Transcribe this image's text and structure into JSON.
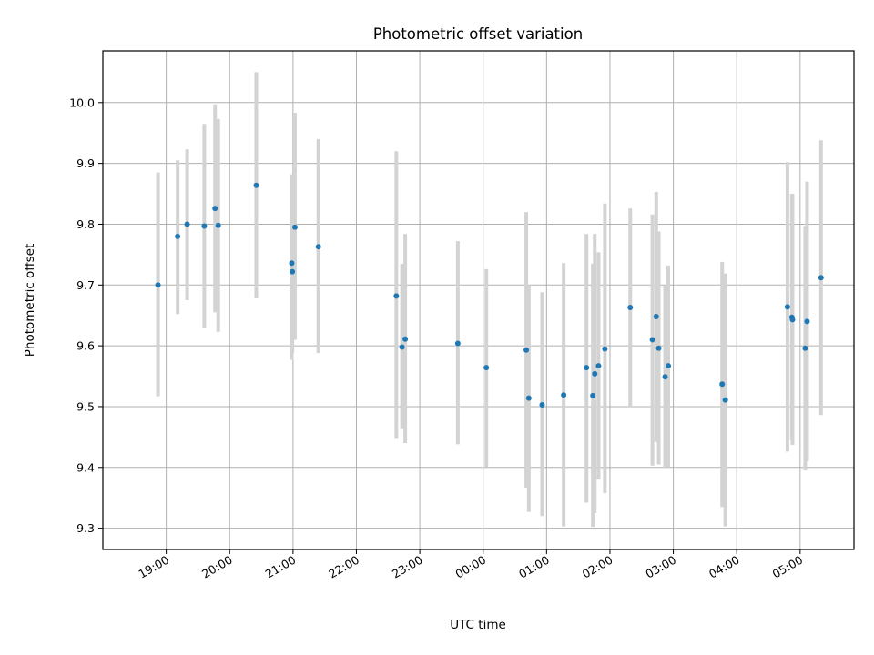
{
  "chart_data": {
    "type": "scatter",
    "title": "Photometric offset variation",
    "xlabel": "UTC time",
    "ylabel": "Photometric offset",
    "x_unit": "hours",
    "x_start_hour": 18.0,
    "xlim": [
      18.0,
      29.85
    ],
    "ylim": [
      9.265,
      10.085
    ],
    "xticks": [
      {
        "value": 19,
        "label": "19:00"
      },
      {
        "value": 20,
        "label": "20:00"
      },
      {
        "value": 21,
        "label": "21:00"
      },
      {
        "value": 22,
        "label": "22:00"
      },
      {
        "value": 23,
        "label": "23:00"
      },
      {
        "value": 24,
        "label": "00:00"
      },
      {
        "value": 25,
        "label": "01:00"
      },
      {
        "value": 26,
        "label": "02:00"
      },
      {
        "value": 27,
        "label": "03:00"
      },
      {
        "value": 28,
        "label": "04:00"
      },
      {
        "value": 29,
        "label": "05:00"
      }
    ],
    "yticks": [
      {
        "value": 9.3,
        "label": "9.3"
      },
      {
        "value": 9.4,
        "label": "9.4"
      },
      {
        "value": 9.5,
        "label": "9.5"
      },
      {
        "value": 9.6,
        "label": "9.6"
      },
      {
        "value": 9.7,
        "label": "9.7"
      },
      {
        "value": 9.8,
        "label": "9.8"
      },
      {
        "value": 9.9,
        "label": "9.9"
      },
      {
        "value": 10.0,
        "label": "10.0"
      }
    ],
    "grid": true,
    "series": [
      {
        "color": "#1f77b4",
        "errorbar_color": "#d3d3d3",
        "points": [
          {
            "x": 18.87,
            "y": 9.7,
            "lo": 9.517,
            "hi": 9.885
          },
          {
            "x": 19.18,
            "y": 9.78,
            "lo": 9.652,
            "hi": 9.905
          },
          {
            "x": 19.33,
            "y": 9.8,
            "lo": 9.675,
            "hi": 9.923
          },
          {
            "x": 19.6,
            "y": 9.797,
            "lo": 9.63,
            "hi": 9.965
          },
          {
            "x": 19.77,
            "y": 9.826,
            "lo": 9.655,
            "hi": 9.997
          },
          {
            "x": 19.82,
            "y": 9.798,
            "lo": 9.623,
            "hi": 9.973
          },
          {
            "x": 20.42,
            "y": 9.864,
            "lo": 9.678,
            "hi": 10.05
          },
          {
            "x": 20.98,
            "y": 9.736,
            "lo": 9.577,
            "hi": 9.882
          },
          {
            "x": 20.99,
            "y": 9.722,
            "lo": 9.588,
            "hi": 9.855
          },
          {
            "x": 21.03,
            "y": 9.795,
            "lo": 9.61,
            "hi": 9.983
          },
          {
            "x": 21.4,
            "y": 9.763,
            "lo": 9.588,
            "hi": 9.94
          },
          {
            "x": 22.63,
            "y": 9.682,
            "lo": 9.447,
            "hi": 9.92
          },
          {
            "x": 22.72,
            "y": 9.598,
            "lo": 9.463,
            "hi": 9.735
          },
          {
            "x": 22.77,
            "y": 9.611,
            "lo": 9.44,
            "hi": 9.784
          },
          {
            "x": 23.6,
            "y": 9.604,
            "lo": 9.438,
            "hi": 9.772
          },
          {
            "x": 24.05,
            "y": 9.564,
            "lo": 9.401,
            "hi": 9.726
          },
          {
            "x": 24.68,
            "y": 9.593,
            "lo": 9.367,
            "hi": 9.82
          },
          {
            "x": 24.72,
            "y": 9.514,
            "lo": 9.327,
            "hi": 9.7
          },
          {
            "x": 24.93,
            "y": 9.503,
            "lo": 9.32,
            "hi": 9.688
          },
          {
            "x": 25.27,
            "y": 9.519,
            "lo": 9.303,
            "hi": 9.736
          },
          {
            "x": 25.63,
            "y": 9.564,
            "lo": 9.342,
            "hi": 9.784
          },
          {
            "x": 25.73,
            "y": 9.518,
            "lo": 9.302,
            "hi": 9.735
          },
          {
            "x": 25.76,
            "y": 9.554,
            "lo": 9.325,
            "hi": 9.784
          },
          {
            "x": 25.82,
            "y": 9.567,
            "lo": 9.38,
            "hi": 9.754
          },
          {
            "x": 25.92,
            "y": 9.595,
            "lo": 9.358,
            "hi": 9.834
          },
          {
            "x": 26.32,
            "y": 9.663,
            "lo": 9.5,
            "hi": 9.826
          },
          {
            "x": 26.67,
            "y": 9.61,
            "lo": 9.403,
            "hi": 9.816
          },
          {
            "x": 26.73,
            "y": 9.648,
            "lo": 9.442,
            "hi": 9.853
          },
          {
            "x": 26.77,
            "y": 9.596,
            "lo": 9.405,
            "hi": 9.788
          },
          {
            "x": 26.87,
            "y": 9.549,
            "lo": 9.4,
            "hi": 9.7
          },
          {
            "x": 26.92,
            "y": 9.567,
            "lo": 9.4,
            "hi": 9.732
          },
          {
            "x": 27.77,
            "y": 9.537,
            "lo": 9.335,
            "hi": 9.738
          },
          {
            "x": 27.82,
            "y": 9.511,
            "lo": 9.303,
            "hi": 9.719
          },
          {
            "x": 28.8,
            "y": 9.664,
            "lo": 9.426,
            "hi": 9.902
          },
          {
            "x": 28.88,
            "y": 9.643,
            "lo": 9.437,
            "hi": 9.85
          },
          {
            "x": 28.87,
            "y": 9.647,
            "lo": 9.445,
            "hi": 9.85
          },
          {
            "x": 29.08,
            "y": 9.596,
            "lo": 9.395,
            "hi": 9.797
          },
          {
            "x": 29.11,
            "y": 9.64,
            "lo": 9.41,
            "hi": 9.87
          },
          {
            "x": 29.33,
            "y": 9.712,
            "lo": 9.486,
            "hi": 9.938
          }
        ]
      }
    ]
  }
}
